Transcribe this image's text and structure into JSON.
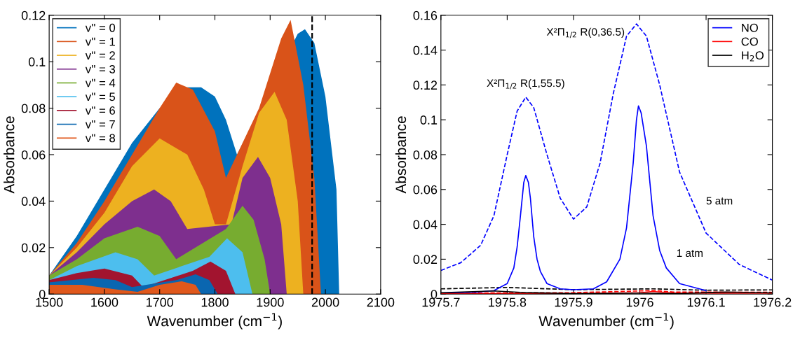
{
  "chart_data": [
    {
      "type": "area",
      "xlabel": "Wavenumber (cm$^{−1}$)",
      "ylabel": "Absorbance",
      "xlim": [
        1500,
        2100
      ],
      "xticks": [
        1500,
        1600,
        1700,
        1800,
        1900,
        2000,
        2100
      ],
      "ylim": [
        0,
        0.12
      ],
      "yticks": [
        0,
        0.02,
        0.04,
        0.06,
        0.08,
        0.1,
        0.12
      ],
      "grid": false,
      "legend": "top left",
      "ref_lines": [
        {
          "axis": "x",
          "value": 1976,
          "color": "#000000",
          "line_style": "dashed"
        }
      ],
      "series": [
        {
          "name": "v'' = 0",
          "color": "#0072bd",
          "x": [
            1500,
            1550,
            1600,
            1650,
            1700,
            1750,
            1775,
            1800,
            1820,
            1840,
            1950,
            1963,
            1980,
            2000,
            2020,
            2025
          ],
          "values": [
            0.008,
            0.025,
            0.045,
            0.065,
            0.08,
            0.089,
            0.089,
            0.085,
            0.075,
            0.06,
            0.112,
            0.114,
            0.108,
            0.085,
            0.045,
            0
          ]
        },
        {
          "name": "v'' = 1",
          "color": "#d95319",
          "x": [
            1500,
            1550,
            1600,
            1650,
            1700,
            1730,
            1760,
            1800,
            1820,
            1880,
            1900,
            1920,
            1937,
            1960,
            1980,
            1992
          ],
          "values": [
            0.008,
            0.022,
            0.04,
            0.06,
            0.08,
            0.091,
            0.088,
            0.07,
            0.05,
            0.08,
            0.095,
            0.11,
            0.118,
            0.09,
            0.05,
            0
          ]
        },
        {
          "name": "v'' = 2",
          "color": "#edb120",
          "x": [
            1500,
            1550,
            1600,
            1650,
            1700,
            1750,
            1780,
            1800,
            1820,
            1850,
            1880,
            1908,
            1930,
            1950,
            1960
          ],
          "values": [
            0.008,
            0.02,
            0.035,
            0.055,
            0.067,
            0.06,
            0.045,
            0.03,
            0.03,
            0.055,
            0.078,
            0.087,
            0.075,
            0.04,
            0
          ]
        },
        {
          "name": "v'' = 3",
          "color": "#7e2f8e",
          "x": [
            1500,
            1550,
            1600,
            1650,
            1690,
            1720,
            1750,
            1830,
            1850,
            1878,
            1900,
            1920,
            1930
          ],
          "values": [
            0.008,
            0.018,
            0.03,
            0.04,
            0.045,
            0.04,
            0.028,
            0.03,
            0.05,
            0.059,
            0.05,
            0.03,
            0
          ]
        },
        {
          "name": "v'' = 4",
          "color": "#77ac30",
          "x": [
            1500,
            1550,
            1600,
            1660,
            1700,
            1730,
            1820,
            1850,
            1870,
            1890,
            1900
          ],
          "values": [
            0.008,
            0.015,
            0.024,
            0.029,
            0.025,
            0.015,
            0.028,
            0.038,
            0.032,
            0.015,
            0
          ]
        },
        {
          "name": "v'' = 5",
          "color": "#4dbeee",
          "x": [
            1500,
            1550,
            1620,
            1660,
            1690,
            1790,
            1822,
            1850,
            1868
          ],
          "values": [
            0.006,
            0.012,
            0.018,
            0.015,
            0.008,
            0.016,
            0.024,
            0.018,
            0
          ]
        },
        {
          "name": "v'' = 6",
          "color": "#a2142f",
          "x": [
            1500,
            1550,
            1600,
            1650,
            1670,
            1760,
            1792,
            1820,
            1837
          ],
          "values": [
            0.006,
            0.009,
            0.011,
            0.008,
            0.003,
            0.01,
            0.014,
            0.01,
            0
          ]
        },
        {
          "name": "v'' = 7",
          "color": "#0a66b0",
          "x": [
            1500,
            1580,
            1620,
            1650,
            1730,
            1765,
            1790,
            1805
          ],
          "values": [
            0.005,
            0.007,
            0.006,
            0.003,
            0.006,
            0.0085,
            0.006,
            0
          ]
        },
        {
          "name": "v'' = 8",
          "color": "#e0581c",
          "x": [
            1500,
            1560,
            1620,
            1660,
            1700,
            1740,
            1765,
            1775
          ],
          "values": [
            0.004,
            0.004,
            0.002,
            0.001,
            0.004,
            0.0055,
            0.004,
            0
          ]
        }
      ]
    },
    {
      "type": "line",
      "xlabel": "Wavenumber (cm$^{−1}$)",
      "ylabel": "Absorbance",
      "xlim": [
        1975.7,
        1976.2
      ],
      "xticks": [
        1975.7,
        1975.8,
        1975.9,
        1976,
        1976.1,
        1976.2
      ],
      "ylim": [
        0,
        0.16
      ],
      "yticks": [
        0,
        0.02,
        0.04,
        0.06,
        0.08,
        0.1,
        0.12,
        0.14,
        0.16
      ],
      "grid": false,
      "legend": "top right",
      "annotations": [
        {
          "text": "X²Π$_{1/2}$ R(1,55.5)",
          "x": 1975.828,
          "y": 0.113
        },
        {
          "text": "X²Π$_{1/2}$ R(0,36.5)",
          "x": 1975.995,
          "y": 0.155
        },
        {
          "text": "5 atm",
          "x": 1976.0794,
          "y": 0.053
        },
        {
          "text": "1 atm",
          "x": 1976.0347,
          "y": 0.023
        }
      ],
      "series": [
        {
          "color": "#0000ff",
          "line_style": "dashed",
          "x": [
            1975.7,
            1975.73,
            1975.76,
            1975.78,
            1975.8,
            1975.815,
            1975.828,
            1975.84,
            1975.86,
            1975.88,
            1975.9,
            1975.92,
            1975.94,
            1975.96,
            1975.98,
            1975.995,
            1976.01,
            1976.03,
            1976.06,
            1976.1,
            1976.15,
            1976.2
          ],
          "values": [
            0.0135,
            0.018,
            0.028,
            0.045,
            0.08,
            0.105,
            0.113,
            0.107,
            0.08,
            0.055,
            0.043,
            0.05,
            0.075,
            0.115,
            0.148,
            0.155,
            0.148,
            0.12,
            0.07,
            0.035,
            0.017,
            0.008
          ]
        },
        {
          "color": "#ff0000",
          "line_style": "dashed",
          "x": [
            1975.7,
            1975.9,
            1976.02,
            1976.05,
            1976.2
          ],
          "values": [
            0.0005,
            0.0008,
            0.002,
            0.0012,
            0.001
          ]
        },
        {
          "color": "#000000",
          "line_style": "dashed",
          "x": [
            1975.7,
            1975.8,
            1975.9,
            1976.02,
            1976.1,
            1976.2
          ],
          "values": [
            0.003,
            0.0038,
            0.0025,
            0.003,
            0.0022,
            0.0024
          ]
        },
        {
          "name": "NO",
          "color": "#0000ff",
          "line_style": "solid",
          "x": [
            1975.7,
            1975.75,
            1975.78,
            1975.8,
            1975.81,
            1975.815,
            1975.82,
            1975.825,
            1975.828,
            1975.832,
            1975.835,
            1975.84,
            1975.845,
            1975.85,
            1975.86,
            1975.88,
            1975.9,
            1975.93,
            1975.95,
            1975.97,
            1975.98,
            1975.99,
            1975.995,
            1975.998,
            1976.002,
            1976.01,
            1976.02,
            1976.03,
            1976.04,
            1976.06,
            1976.1
          ],
          "values": [
            0.0005,
            0.001,
            0.002,
            0.006,
            0.015,
            0.027,
            0.045,
            0.064,
            0.068,
            0.064,
            0.055,
            0.033,
            0.02,
            0.013,
            0.006,
            0.003,
            0.0025,
            0.003,
            0.007,
            0.02,
            0.038,
            0.075,
            0.1,
            0.108,
            0.104,
            0.085,
            0.045,
            0.025,
            0.015,
            0.006,
            0.002
          ]
        },
        {
          "name": "CO",
          "color": "#ff0000",
          "line_style": "solid",
          "x": [
            1975.7,
            1975.9,
            1976.0,
            1976.02,
            1976.05,
            1976.2
          ],
          "values": [
            0.0003,
            0.0003,
            0.0008,
            0.0015,
            0.0006,
            0.0005
          ]
        },
        {
          "name": "H$_{2}$O",
          "color": "#000000",
          "line_style": "solid",
          "x": [
            1975.7,
            1975.78,
            1975.83,
            1975.9,
            1976.0,
            1976.06,
            1976.13,
            1976.2
          ],
          "values": [
            0.0008,
            0.0018,
            0.0008,
            0.0003,
            0.0005,
            0.0003,
            0.0012,
            0.0007
          ]
        }
      ]
    }
  ]
}
